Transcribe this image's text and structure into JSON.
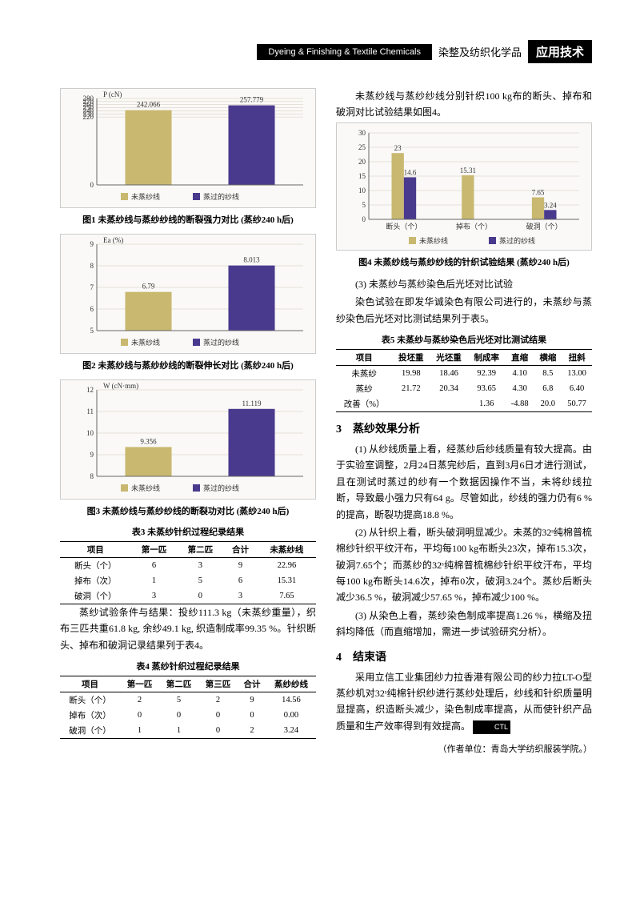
{
  "header": {
    "left_bar": "Dyeing & Finishing & Textile Chemicals",
    "mid_text": "染整及纺织化学品",
    "right_bar": "应用技术"
  },
  "chart1": {
    "type": "bar",
    "ylabel": "P (cN)",
    "ylim": [
      0,
      280
    ],
    "yticks": [
      0,
      220,
      230,
      240,
      250,
      260,
      270,
      280
    ],
    "categories": [
      "未蒸纱线",
      "蒸过的纱线"
    ],
    "values": [
      242.066,
      257.779
    ],
    "value_labels": [
      "242.066",
      "257.779"
    ],
    "bar_colors": [
      "#c9b870",
      "#4a3a8e"
    ],
    "background_color": "#faf9f7",
    "grid_color": "#d0c8b8",
    "bar_width": 0.45,
    "label_fontsize": 9,
    "caption": "图1 未蒸纱线与蒸纱纱线的断裂强力对比 (蒸纱240 h后)"
  },
  "chart2": {
    "type": "bar",
    "ylabel": "Ea (%)",
    "ylim": [
      5,
      9
    ],
    "yticks": [
      5,
      6,
      7,
      8,
      9
    ],
    "categories": [
      "未蒸纱线",
      "蒸过的纱线"
    ],
    "values": [
      6.79,
      8.013
    ],
    "value_labels": [
      "6.79",
      "8.013"
    ],
    "bar_colors": [
      "#c9b870",
      "#4a3a8e"
    ],
    "background_color": "#faf9f7",
    "grid_color": "#d0c8b8",
    "bar_width": 0.45,
    "label_fontsize": 9,
    "caption": "图2 未蒸纱线与蒸纱纱线的断裂伸长对比 (蒸纱240 h后)"
  },
  "chart3": {
    "type": "bar",
    "ylabel": "W (cN·mm)",
    "ylim": [
      8,
      12
    ],
    "yticks": [
      8,
      9,
      10,
      11,
      12
    ],
    "categories": [
      "未蒸纱线",
      "蒸过的纱线"
    ],
    "values": [
      9.356,
      11.119
    ],
    "value_labels": [
      "9.356",
      "11.119"
    ],
    "bar_colors": [
      "#c9b870",
      "#4a3a8e"
    ],
    "background_color": "#faf9f7",
    "grid_color": "#d0c8b8",
    "bar_width": 0.45,
    "label_fontsize": 9,
    "caption": "图3 未蒸纱线与蒸纱纱线的断裂功对比 (蒸纱240 h后)"
  },
  "chart4": {
    "type": "grouped_bar",
    "ylim": [
      0,
      30
    ],
    "yticks": [
      0,
      5,
      10,
      15,
      20,
      25,
      30
    ],
    "categories": [
      "断头（个）",
      "掉布（个）",
      "破洞（个）"
    ],
    "series": [
      {
        "name": "未蒸纱线",
        "color": "#c9b870",
        "values": [
          23,
          15.31,
          7.65
        ],
        "labels": [
          "23",
          "15.31",
          "7.65"
        ]
      },
      {
        "name": "蒸过的纱线",
        "color": "#4a3a8e",
        "values": [
          14.6,
          0,
          3.24
        ],
        "labels": [
          "14.6",
          "",
          "3.24"
        ]
      }
    ],
    "background_color": "#faf9f7",
    "grid_color": "#d0c8b8",
    "bar_width": 0.35,
    "label_fontsize": 9,
    "caption": "图4 未蒸纱线与蒸纱纱线的针织试验结果 (蒸纱240 h后)"
  },
  "legend": {
    "a_label": "未蒸纱线",
    "a_color": "#c9b870",
    "b_label": "蒸过的纱线",
    "b_color": "#4a3a8e"
  },
  "table3": {
    "title": "表3 未蒸纱针织过程纪录结果",
    "columns": [
      "项目",
      "第一匹",
      "第二匹",
      "合计",
      "未蒸纱线"
    ],
    "rows": [
      [
        "断头（个）",
        "6",
        "3",
        "9",
        "22.96"
      ],
      [
        "掉布（次）",
        "1",
        "5",
        "6",
        "15.31"
      ],
      [
        "破洞（个）",
        "3",
        "0",
        "3",
        "7.65"
      ]
    ]
  },
  "para_left_1": "蒸纱试验条件与结果：投纱111.3 kg（未蒸纱重量），织布三匹共重61.8 kg, 余纱49.1 kg, 织造制成率99.35 %。针织断头、掉布和破洞记录结果列于表4。",
  "table4": {
    "title": "表4 蒸纱针织过程纪录结果",
    "columns": [
      "项目",
      "第一匹",
      "第二匹",
      "第三匹",
      "合计",
      "蒸纱纱线"
    ],
    "rows": [
      [
        "断头（个）",
        "2",
        "5",
        "2",
        "9",
        "14.56"
      ],
      [
        "掉布（次）",
        "0",
        "0",
        "0",
        "0",
        "0.00"
      ],
      [
        "破洞（个）",
        "1",
        "1",
        "0",
        "2",
        "3.24"
      ]
    ]
  },
  "para_right_top": "未蒸纱线与蒸纱纱线分别针织100 kg布的断头、掉布和破洞对比试验结果如图4。",
  "para_right_sub": "(3) 未蒸纱与蒸纱染色后光坯对比试验",
  "para_right_1": "染色试验在即发华诚染色有限公司进行的，未蒸纱与蒸纱染色后光坯对比测试结果列于表5。",
  "table5": {
    "title": "表5 未蒸纱与蒸纱染色后光坯对比测试结果",
    "columns": [
      "项目",
      "投坯重",
      "光坯重",
      "制成率",
      "直缩",
      "横缩",
      "扭斜"
    ],
    "rows": [
      [
        "未蒸纱",
        "19.98",
        "18.46",
        "92.39",
        "4.10",
        "8.5",
        "13.00"
      ],
      [
        "蒸纱",
        "21.72",
        "20.34",
        "93.65",
        "4.30",
        "6.8",
        "6.40"
      ],
      [
        "改善（%）",
        "",
        "",
        "1.36",
        "-4.88",
        "20.0",
        "50.77"
      ]
    ]
  },
  "section3": {
    "title": "3　蒸纱效果分析",
    "p1": "(1) 从纱线质量上看，经蒸纱后纱线质量有较大提高。由于实验室调整，2月24日蒸完纱后，直到3月6日才进行测试，且在测试时蒸过的纱有一个数据因操作不当，未将纱线拉断，导致最小强力只有64 g。尽管如此，纱线的强力仍有6 %的提高，断裂功提高18.8 %。",
    "p2": "(2) 从针织上看，断头破洞明显减少。未蒸的32ˢ纯棉普梳棉纱针织平纹汗布，平均每100 kg布断头23次，掉布15.3次，破洞7.65个；而蒸纱的32ˢ纯棉普梳棉纱针织平纹汗布，平均每100 kg布断头14.6次，掉布0次，破洞3.24个。蒸纱后断头减少36.5 %，破洞减少57.65 %，掉布减少100 %。",
    "p3": "(3) 从染色上看，蒸纱染色制成率提高1.26 %，横缩及扭斜均降低（而直缩增加，需进一步试验研究分析）。"
  },
  "section4": {
    "title": "4　结束语",
    "p1": "采用立信工业集团纱力拉香港有限公司的纱力拉LT-O型蒸纱机对32ˢ纯棉针织纱进行蒸纱处理后，纱线和针织质量明显提高，织造断头减少，染色制成率提高，从而使针织产品质量和生产效率得到有效提高。",
    "logo": "CTL"
  },
  "author": "（作者单位：青岛大学纺织服装学院。）"
}
